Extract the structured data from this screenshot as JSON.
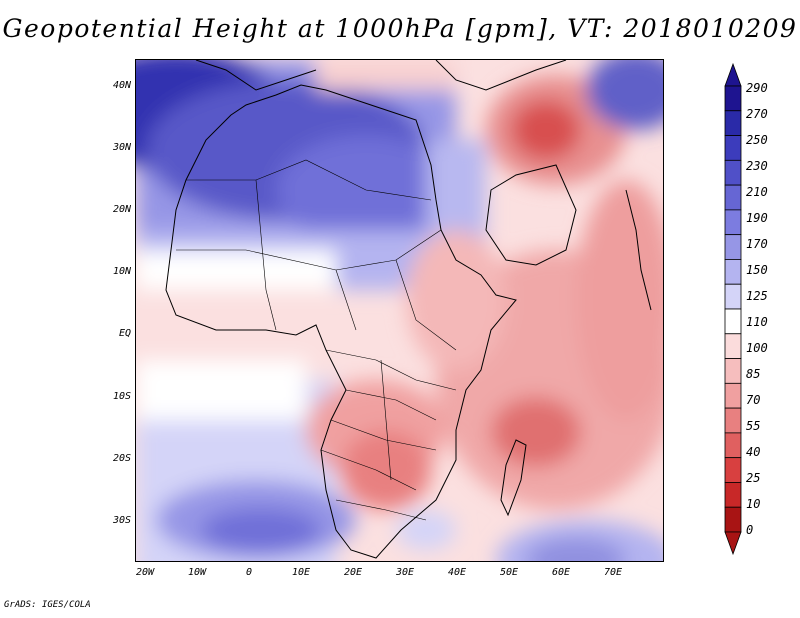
{
  "title": "Geopotential Height at 1000hPa [gpm], VT: 2018010209",
  "credit": "GrADS: IGES/COLA",
  "map": {
    "lat_labels": [
      "40N",
      "30N",
      "20N",
      "10N",
      "EQ",
      "10S",
      "20S",
      "30S"
    ],
    "lon_labels": [
      "20W",
      "10W",
      "0",
      "10E",
      "20E",
      "30E",
      "40E",
      "50E",
      "60E",
      "70E"
    ]
  },
  "colorbar": {
    "levels": [
      "290",
      "270",
      "250",
      "230",
      "210",
      "190",
      "170",
      "150",
      "125",
      "110",
      "100",
      "85",
      "70",
      "55",
      "40",
      "25",
      "10",
      "0"
    ],
    "colors": [
      "#1e1490",
      "#2a2aa8",
      "#3c3cbc",
      "#5050c8",
      "#6666d4",
      "#7c7ce0",
      "#9696e6",
      "#b4b4f0",
      "#d4d4f8",
      "#ffffff",
      "#fbdcdc",
      "#f6bebe",
      "#f0a0a0",
      "#e88080",
      "#e06060",
      "#d84040",
      "#c82828",
      "#a81414"
    ]
  }
}
